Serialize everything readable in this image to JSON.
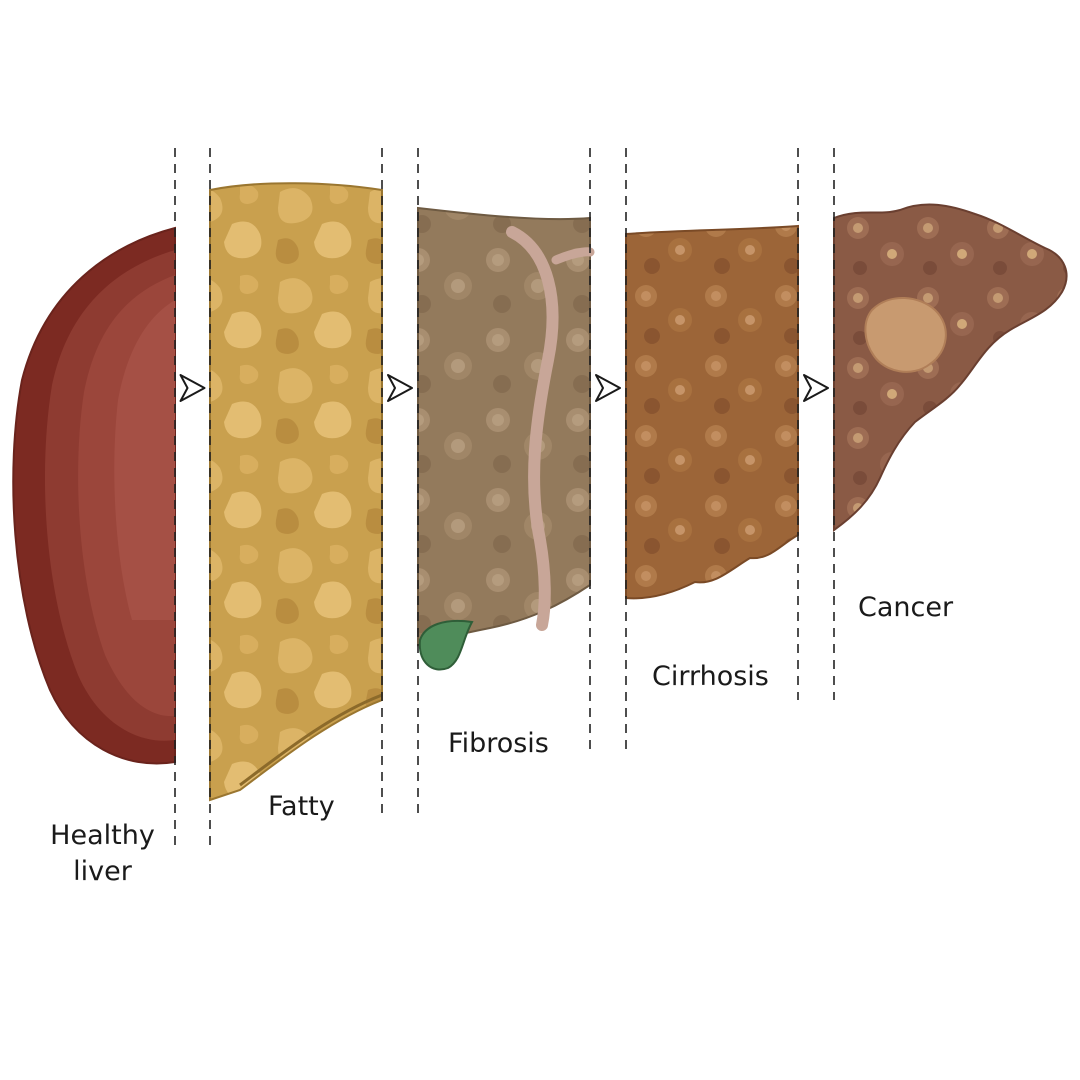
{
  "stages": [
    {
      "id": "healthy",
      "label_lines": [
        "Healthy",
        "liver"
      ],
      "color": "#8a3a30"
    },
    {
      "id": "fatty",
      "label": "Fatty",
      "color": "#c9a04e"
    },
    {
      "id": "fibrosis",
      "label": "Fibrosis",
      "color": "#9a8060"
    },
    {
      "id": "cirrhosis",
      "label": "Cirrhosis",
      "color": "#a06a3a"
    },
    {
      "id": "cancer",
      "label": "Cancer",
      "color": "#8a5a45"
    }
  ],
  "arrow_icon": "outlined-arrow-right-icon",
  "colors": {
    "separator": "#222222",
    "gallbladder": "#4f8c5a",
    "ligament": "#c8a698"
  }
}
